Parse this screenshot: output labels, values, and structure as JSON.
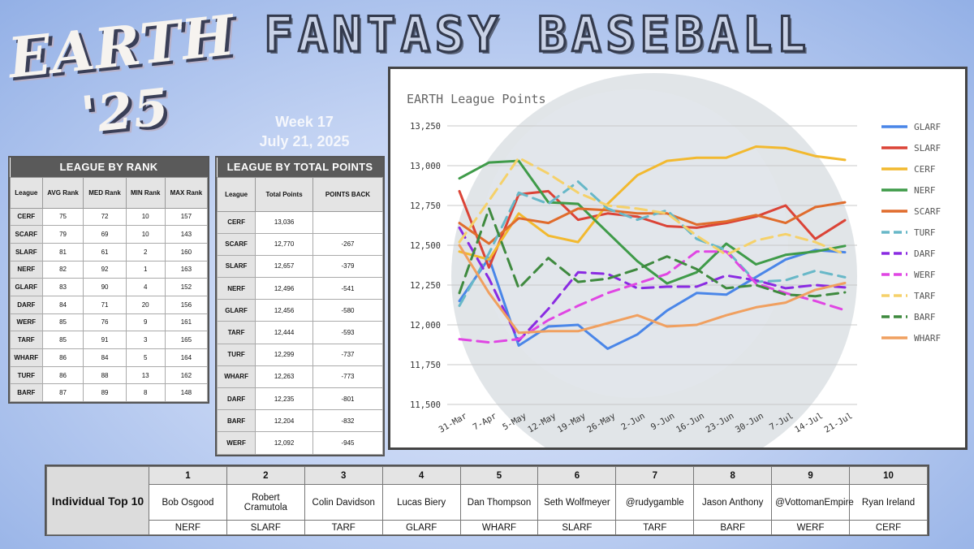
{
  "logo": {
    "line1": "EARTH",
    "line2": "'25"
  },
  "title": "FANTASY BASEBALL",
  "week": {
    "label": "Week 17",
    "date": "July 21, 2025"
  },
  "colors": {
    "GLARF": "#4a86e8",
    "SLARF": "#db4437",
    "CERF": "#f2b92f",
    "NERF": "#3f9b49",
    "SCARF": "#e06c2d",
    "TURF": "#68b8c8",
    "DARF": "#8a2be2",
    "WERF": "#e046e3",
    "TARF": "#f5d16a",
    "BARF": "#3f8a3f",
    "WHARF": "#f0a060"
  },
  "rank_table": {
    "title": "LEAGUE BY RANK",
    "columns": [
      "League",
      "AVG Rank",
      "MED Rank",
      "MIN Rank",
      "MAX Rank"
    ],
    "rows": [
      [
        "CERF",
        "75",
        "72",
        "10",
        "157"
      ],
      [
        "SCARF",
        "79",
        "69",
        "10",
        "143"
      ],
      [
        "SLARF",
        "81",
        "61",
        "2",
        "160"
      ],
      [
        "NERF",
        "82",
        "92",
        "1",
        "163"
      ],
      [
        "GLARF",
        "83",
        "90",
        "4",
        "152"
      ],
      [
        "DARF",
        "84",
        "71",
        "20",
        "156"
      ],
      [
        "WERF",
        "85",
        "76",
        "9",
        "161"
      ],
      [
        "TARF",
        "85",
        "91",
        "3",
        "165"
      ],
      [
        "WHARF",
        "86",
        "84",
        "5",
        "164"
      ],
      [
        "TURF",
        "86",
        "88",
        "13",
        "162"
      ],
      [
        "BARF",
        "87",
        "89",
        "8",
        "148"
      ]
    ]
  },
  "points_table": {
    "title": "LEAGUE BY TOTAL POINTS",
    "columns": [
      "League",
      "Total Points",
      "POINTS BACK"
    ],
    "rows": [
      [
        "CERF",
        "13,036",
        ""
      ],
      [
        "SCARF",
        "12,770",
        "-267"
      ],
      [
        "SLARF",
        "12,657",
        "-379"
      ],
      [
        "NERF",
        "12,496",
        "-541"
      ],
      [
        "GLARF",
        "12,456",
        "-580"
      ],
      [
        "TARF",
        "12,444",
        "-593"
      ],
      [
        "TURF",
        "12,299",
        "-737"
      ],
      [
        "WHARF",
        "12,263",
        "-773"
      ],
      [
        "DARF",
        "12,235",
        "-801"
      ],
      [
        "BARF",
        "12,204",
        "-832"
      ],
      [
        "WERF",
        "12,092",
        "-945"
      ]
    ]
  },
  "chart_data": {
    "type": "line",
    "title": "EARTH League Points",
    "x": [
      "31-Mar",
      "7-Apr",
      "5-May",
      "12-May",
      "19-May",
      "26-May",
      "2-Jun",
      "9-Jun",
      "16-Jun",
      "23-Jun",
      "30-Jun",
      "7-Jul",
      "14-Jul",
      "21-Jul"
    ],
    "ylim": [
      11500,
      13250
    ],
    "yticks": [
      "13,250",
      "13,000",
      "12,750",
      "12,500",
      "12,250",
      "12,000",
      "11,750",
      "11,500"
    ],
    "ytick_values": [
      13250,
      13000,
      12750,
      12500,
      12250,
      12000,
      11750,
      11500
    ],
    "grid": true,
    "legend_position": "right",
    "series": [
      {
        "name": "GLARF",
        "dash": false,
        "values": [
          12150,
          12420,
          11870,
          11990,
          12000,
          11850,
          11940,
          12090,
          12200,
          12190,
          12300,
          12410,
          12470,
          12456
        ]
      },
      {
        "name": "SLARF",
        "dash": false,
        "values": [
          12840,
          12360,
          12820,
          12840,
          12660,
          12700,
          12680,
          12620,
          12610,
          12640,
          12680,
          12750,
          12540,
          12657
        ]
      },
      {
        "name": "CERF",
        "dash": false,
        "values": [
          12460,
          12410,
          12700,
          12560,
          12520,
          12760,
          12940,
          13030,
          13050,
          13050,
          13120,
          13110,
          13060,
          13036
        ]
      },
      {
        "name": "NERF",
        "dash": false,
        "values": [
          12920,
          13020,
          13030,
          12770,
          12760,
          12580,
          12400,
          12260,
          12330,
          12510,
          12380,
          12440,
          12460,
          12496
        ]
      },
      {
        "name": "SCARF",
        "dash": false,
        "values": [
          12640,
          12510,
          12670,
          12640,
          12730,
          12720,
          12700,
          12700,
          12630,
          12650,
          12690,
          12640,
          12740,
          12770
        ]
      },
      {
        "name": "TURF",
        "dash": true,
        "values": [
          12120,
          12450,
          12830,
          12760,
          12900,
          12730,
          12660,
          12720,
          12540,
          12470,
          12270,
          12280,
          12340,
          12299
        ]
      },
      {
        "name": "DARF",
        "dash": true,
        "values": [
          12610,
          12290,
          11900,
          12100,
          12330,
          12320,
          12230,
          12240,
          12240,
          12310,
          12280,
          12230,
          12250,
          12235
        ]
      },
      {
        "name": "WERF",
        "dash": true,
        "values": [
          11910,
          11890,
          11910,
          12030,
          12120,
          12200,
          12260,
          12320,
          12460,
          12460,
          12260,
          12200,
          12150,
          12092
        ]
      },
      {
        "name": "TARF",
        "dash": true,
        "values": [
          12520,
          12780,
          13050,
          12950,
          12830,
          12750,
          12730,
          12700,
          12560,
          12440,
          12530,
          12570,
          12520,
          12444
        ]
      },
      {
        "name": "BARF",
        "dash": true,
        "values": [
          12200,
          12730,
          12230,
          12420,
          12270,
          12290,
          12350,
          12430,
          12350,
          12230,
          12250,
          12190,
          12180,
          12204
        ]
      },
      {
        "name": "WHARF",
        "dash": false,
        "values": [
          12500,
          12200,
          11950,
          11960,
          11960,
          12010,
          12060,
          11990,
          12000,
          12060,
          12110,
          12140,
          12220,
          12263
        ]
      }
    ]
  },
  "top10": {
    "label": "Individual Top 10",
    "ranks": [
      "1",
      "2",
      "3",
      "4",
      "5",
      "6",
      "7",
      "8",
      "9",
      "10"
    ],
    "names": [
      "Bob Osgood",
      "Robert Cramutola",
      "Colin Davidson",
      "Lucas Biery",
      "Dan Thompson",
      "Seth Wolfmeyer",
      "@rudygamble",
      "Jason Anthony",
      "@VottomanEmpire",
      "Ryan Ireland"
    ],
    "teams": [
      "NERF",
      "SLARF",
      "TARF",
      "GLARF",
      "WHARF",
      "SLARF",
      "TARF",
      "BARF",
      "WERF",
      "CERF"
    ]
  }
}
